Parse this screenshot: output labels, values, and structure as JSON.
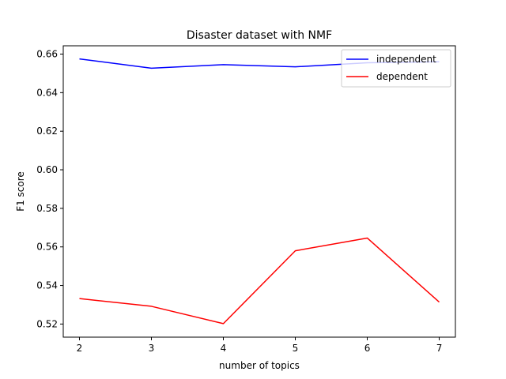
{
  "chart_data": {
    "type": "line",
    "title": "Disaster dataset with NMF",
    "xlabel": "number of topics",
    "ylabel": "F1 score",
    "x": [
      2,
      3,
      4,
      5,
      6,
      7
    ],
    "xlim": [
      1.775,
      7.225
    ],
    "ylim": [
      0.5132,
      0.6643
    ],
    "xticks": [
      "2",
      "3",
      "4",
      "5",
      "6",
      "7"
    ],
    "yticks": [
      0.52,
      0.54,
      0.56,
      0.58,
      0.6,
      0.62,
      0.64,
      0.66
    ],
    "ytick_labels": [
      "0.52",
      "0.54",
      "0.56",
      "0.58",
      "0.60",
      "0.62",
      "0.64",
      "0.66"
    ],
    "grid": false,
    "legend_position": "top-right",
    "series": [
      {
        "name": "independent",
        "color": "#0000ff",
        "values": [
          0.6575,
          0.6527,
          0.6545,
          0.6534,
          0.6555,
          0.656
        ]
      },
      {
        "name": "dependent",
        "color": "#ff0000",
        "values": [
          0.5332,
          0.5292,
          0.5202,
          0.558,
          0.5646,
          0.5314
        ]
      }
    ]
  }
}
